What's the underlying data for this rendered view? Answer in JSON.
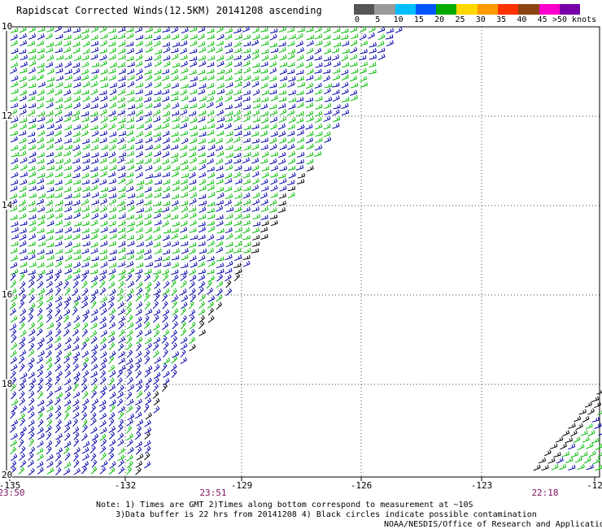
{
  "title": "Rapidscat Corrected Winds(12.5KM) 20141208 ascending",
  "legend": {
    "labels": [
      "0",
      "5",
      "10",
      "15",
      "20",
      "25",
      "30",
      "35",
      "40",
      "45",
      ">50 knots"
    ],
    "colors": [
      "#555555",
      "#999999",
      "#00bfff",
      "#0055ff",
      "#00aa00",
      "#ffd700",
      "#ff9900",
      "#ff3300",
      "#8b4513",
      "#ff00cc",
      "#7700aa"
    ]
  },
  "axes": {
    "lon_labels": [
      "-135",
      "-132",
      "-129",
      "-126",
      "-123",
      "-12"
    ],
    "lat_labels": [
      "10",
      "12",
      "14",
      "16",
      "18",
      "20"
    ]
  },
  "time_labels": [
    "23:50",
    "23:51",
    "22:18"
  ],
  "notes": {
    "line1": "Note: 1) Times are GMT 2)Times along bottom correspond to measurement at ~10S",
    "line2": "3)Data buffer is 22 hrs from 20141208 4) Black circles indicate possible contamination",
    "line3": "NOAA/NESDIS/Office of Research and Applications"
  },
  "colors": {
    "barb_green": "#00bb00",
    "barb_blue": "#0000aa",
    "barb_black": "#000000",
    "time_label": "#7b1260"
  }
}
